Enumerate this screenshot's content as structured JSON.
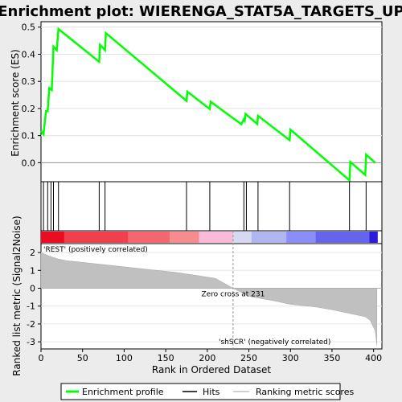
{
  "title": "Enrichment plot: WIERENGA_STAT5A_TARGETS_UP",
  "chart_data": [
    {
      "type": "line",
      "panel": "enrichment",
      "ylabel": "Enrichment score (ES)",
      "yticks": [
        "0.0",
        "0.1",
        "0.2",
        "0.3",
        "0.4",
        "0.5"
      ],
      "ylim": [
        -0.07,
        0.52
      ],
      "xlim": [
        0,
        410
      ],
      "color": "#00ff00",
      "x": [
        0,
        3,
        6,
        8,
        10,
        13,
        15,
        19,
        21,
        70,
        71,
        77,
        78,
        175,
        176,
        203,
        204,
        241,
        244,
        245,
        246,
        260,
        261,
        299,
        300,
        371,
        372,
        390,
        391,
        402
      ],
      "y": [
        0.118,
        0.105,
        0.19,
        0.19,
        0.275,
        0.268,
        0.428,
        0.415,
        0.493,
        0.372,
        0.435,
        0.415,
        0.478,
        0.228,
        0.262,
        0.198,
        0.225,
        0.142,
        0.16,
        0.155,
        0.18,
        0.143,
        0.173,
        0.083,
        0.122,
        -0.065,
        0.003,
        -0.045,
        0.03,
        0.0
      ]
    },
    {
      "type": "scatter",
      "panel": "hits",
      "xlim": [
        0,
        410
      ],
      "hit_positions": [
        3,
        8,
        12,
        15,
        21,
        70,
        77,
        175,
        203,
        244,
        247,
        261,
        299,
        371,
        391
      ]
    },
    {
      "type": "heatmap",
      "panel": "ranking-colorbar",
      "xlim": [
        0,
        410
      ],
      "segments": [
        {
          "from": 0,
          "to": 28,
          "color": "#ea0c21"
        },
        {
          "from": 28,
          "to": 105,
          "color": "#f03f4d"
        },
        {
          "from": 105,
          "to": 155,
          "color": "#f4676f"
        },
        {
          "from": 155,
          "to": 190,
          "color": "#f78c8e"
        },
        {
          "from": 190,
          "to": 231,
          "color": "#fbbad7"
        },
        {
          "from": 231,
          "to": 253,
          "color": "#d7d8f2"
        },
        {
          "from": 253,
          "to": 295,
          "color": "#b0b6f0"
        },
        {
          "from": 295,
          "to": 330,
          "color": "#8b8ef6"
        },
        {
          "from": 330,
          "to": 395,
          "color": "#6565ec"
        },
        {
          "from": 395,
          "to": 405,
          "color": "#2a1ed8"
        }
      ]
    },
    {
      "type": "area",
      "panel": "ranked-list",
      "ylabel": "Ranked list metric (Signal2Noise)",
      "xlabel": "Rank in Ordered Dataset",
      "xticks": [
        "0",
        "50",
        "100",
        "150",
        "200",
        "250",
        "300",
        "350",
        "400"
      ],
      "xtick_values": [
        0,
        50,
        100,
        150,
        200,
        250,
        300,
        350,
        400
      ],
      "yticks": [
        "2",
        "1",
        "0",
        "-1",
        "-2",
        "-3"
      ],
      "ytick_values": [
        2,
        1,
        0,
        -1,
        -2,
        -3
      ],
      "ylim": [
        -3.4,
        2.5
      ],
      "xlim": [
        0,
        410
      ],
      "fill": "#c0c0c0",
      "x": [
        0,
        2,
        5,
        10,
        20,
        30,
        50,
        80,
        100,
        130,
        160,
        190,
        210,
        231,
        250,
        280,
        300,
        330,
        350,
        370,
        390,
        396,
        400,
        402,
        404
      ],
      "y": [
        2.05,
        1.95,
        1.9,
        1.8,
        1.65,
        1.55,
        1.45,
        1.3,
        1.2,
        1.05,
        0.9,
        0.7,
        0.55,
        0.0,
        -0.45,
        -0.7,
        -0.9,
        -1.05,
        -1.2,
        -1.4,
        -1.6,
        -1.8,
        -2.2,
        -2.4,
        -3.2
      ],
      "zero_cross_label": "Zero cross at 231",
      "zero_cross_x": 231,
      "pos_label": "'REST' (positively correlated)",
      "neg_label": "'shSCR' (negatively correlated)",
      "pos_color": "#c00000",
      "neg_color": "#0000c0"
    }
  ],
  "legend": {
    "items": [
      {
        "label": "Enrichment profile",
        "color": "#00ff00"
      },
      {
        "label": "Hits",
        "color": "#000000"
      },
      {
        "label": "Ranking metric scores",
        "color": "#c0c0c0"
      }
    ]
  }
}
